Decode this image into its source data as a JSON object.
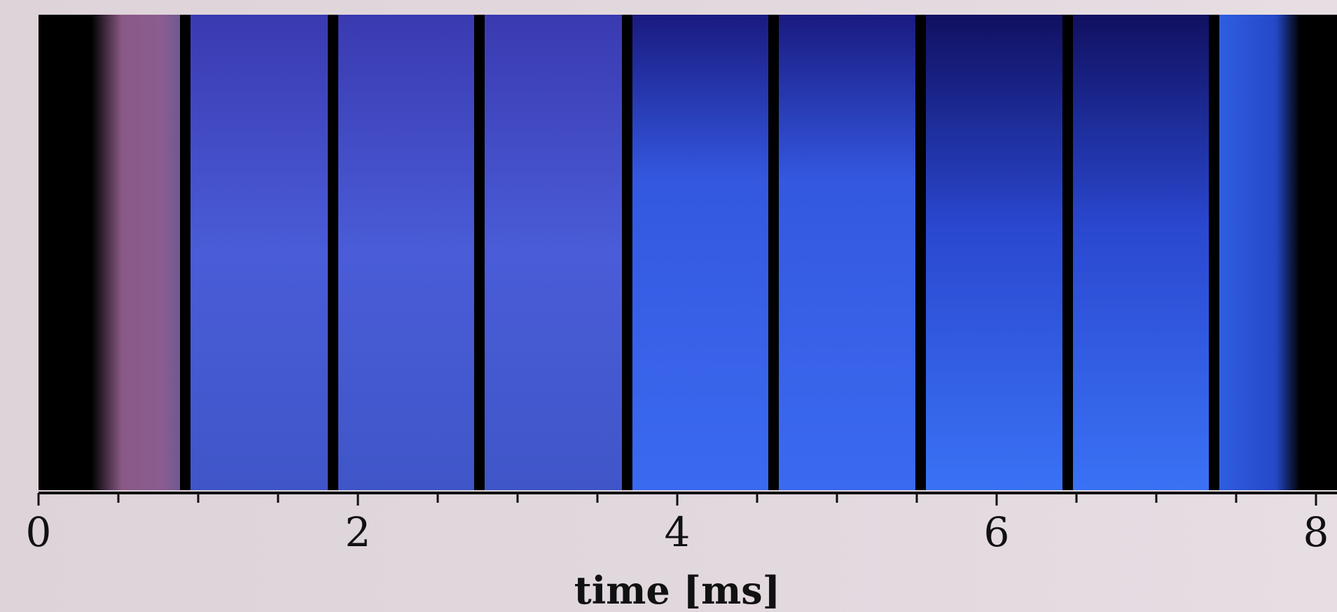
{
  "chart_data": {
    "type": "filmstrip",
    "x_label": "time [ms]",
    "xlim": [
      0,
      8
    ],
    "xticks": [
      0,
      2,
      4,
      6,
      8
    ],
    "xminorticks": [
      0.5,
      1,
      1.5,
      2.5,
      3,
      3.5,
      4.5,
      5,
      5.5,
      6.5,
      7,
      7.5
    ]
  }
}
